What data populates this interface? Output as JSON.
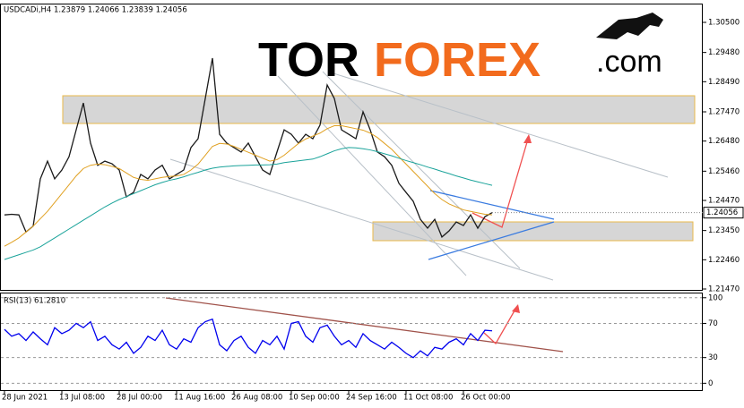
{
  "logo": {
    "part1": "TOR",
    "part2": "FOREX",
    "part3": ".com"
  },
  "chart_data": [
    {
      "type": "line",
      "title": "USDCADi,H4  1.23879 1.24066 1.23839 1.24056",
      "ylim": [
        1.2147,
        1.31106
      ],
      "yticks": [
        {
          "value": 1.305,
          "label": "1.30500"
        },
        {
          "value": 1.2948,
          "label": "1.29480"
        },
        {
          "value": 1.2849,
          "label": "1.28490"
        },
        {
          "value": 1.2747,
          "label": "1.27470"
        },
        {
          "value": 1.2648,
          "label": "1.26480"
        },
        {
          "value": 1.2546,
          "label": "1.25460"
        },
        {
          "value": 1.2447,
          "label": "1.24470"
        },
        {
          "value": 1.2345,
          "label": "1.23450"
        },
        {
          "value": 1.2246,
          "label": "1.22460"
        },
        {
          "value": 1.2147,
          "label": "1.21470"
        }
      ],
      "series": [
        {
          "color": "#1a1a1a",
          "values": [
            1.2398,
            1.24,
            1.2398,
            1.234,
            1.236,
            1.252,
            1.258,
            1.252,
            1.255,
            1.2595,
            1.2686,
            1.2777,
            1.2641,
            1.2566,
            1.258,
            1.2571,
            1.255,
            1.2459,
            1.2474,
            1.2535,
            1.252,
            1.255,
            1.2566,
            1.252,
            1.2535,
            1.255,
            1.2626,
            1.2656,
            1.2792,
            1.2929,
            1.2671,
            1.2641,
            1.2626,
            1.2611,
            1.2641,
            1.2595,
            1.255,
            1.2535,
            1.2611,
            1.2686,
            1.2671,
            1.2641,
            1.2671,
            1.2656,
            1.2702,
            1.2838,
            1.2792,
            1.2686,
            1.2671,
            1.2656,
            1.2747,
            1.2686,
            1.2611,
            1.2595,
            1.2566,
            1.2505,
            1.2474,
            1.2444,
            1.2383,
            1.2353,
            1.2383,
            1.2323,
            1.2344,
            1.2374,
            1.2362,
            1.2398,
            1.2353,
            1.2392,
            1.24056
          ]
        },
        {
          "color": "#e0a020",
          "values": [
            1.2292,
            1.2305,
            1.232,
            1.234,
            1.236,
            1.2385,
            1.241,
            1.244,
            1.247,
            1.25,
            1.253,
            1.2555,
            1.2566,
            1.257,
            1.2568,
            1.2562,
            1.2555,
            1.254,
            1.2525,
            1.2518,
            1.2515,
            1.252,
            1.2525,
            1.2528,
            1.253,
            1.2535,
            1.255,
            1.257,
            1.26,
            1.263,
            1.264,
            1.2638,
            1.263,
            1.262,
            1.261,
            1.26,
            1.259,
            1.258,
            1.2585,
            1.26,
            1.262,
            1.264,
            1.2655,
            1.2665,
            1.2675,
            1.269,
            1.27,
            1.27,
            1.2695,
            1.269,
            1.2685,
            1.2675,
            1.266,
            1.264,
            1.262,
            1.2595,
            1.257,
            1.2545,
            1.252,
            1.2495,
            1.247,
            1.245,
            1.2435,
            1.2425,
            1.2415,
            1.241,
            1.2405,
            1.24,
            1.2398
          ]
        },
        {
          "color": "#1aa39a",
          "values": [
            1.2247,
            1.2255,
            1.2263,
            1.2271,
            1.2279,
            1.229,
            1.2305,
            1.232,
            1.2335,
            1.235,
            1.2365,
            1.238,
            1.2395,
            1.241,
            1.2425,
            1.2438,
            1.245,
            1.246,
            1.247,
            1.248,
            1.249,
            1.25,
            1.2508,
            1.2515,
            1.252,
            1.2527,
            1.2535,
            1.2542,
            1.255,
            1.2556,
            1.256,
            1.2562,
            1.2564,
            1.2565,
            1.2566,
            1.2567,
            1.2567,
            1.2568,
            1.257,
            1.2575,
            1.2578,
            1.2581,
            1.2584,
            1.2587,
            1.2595,
            1.2605,
            1.2615,
            1.2622,
            1.2626,
            1.2625,
            1.2622,
            1.2618,
            1.2612,
            1.2605,
            1.2598,
            1.259,
            1.2582,
            1.2575,
            1.2568,
            1.256,
            1.2553,
            1.2545,
            1.2538,
            1.253,
            1.2523,
            1.2516,
            1.251,
            1.2504,
            1.2498
          ]
        }
      ]
    },
    {
      "type": "line",
      "title": "RSI(13) 61.2810",
      "ylim": [
        -8,
        105
      ],
      "yticks": [
        100,
        70,
        30,
        0
      ],
      "categories": [
        "28 Jun 2021",
        null,
        null,
        null,
        null,
        null,
        null,
        null,
        "13 Jul 08:00",
        null,
        null,
        null,
        null,
        null,
        null,
        null,
        "28 Jul 00:00",
        null,
        null,
        null,
        null,
        null,
        null,
        null,
        "11 Aug 16:00",
        null,
        null,
        null,
        null,
        null,
        null,
        null,
        "26 Aug 08:00",
        null,
        null,
        null,
        null,
        null,
        null,
        null,
        "10 Sep 00:00",
        null,
        null,
        null,
        null,
        null,
        null,
        null,
        "24 Sep 16:00",
        null,
        null,
        null,
        null,
        null,
        null,
        null,
        "11 Oct 08:00",
        null,
        null,
        null,
        null,
        null,
        null,
        null,
        "26 Oct 00:00",
        null,
        null,
        null,
        null
      ],
      "series": [
        {
          "color": "#0000ee",
          "values": [
            63,
            55,
            58,
            50,
            60,
            52,
            45,
            65,
            58,
            62,
            70,
            65,
            72,
            50,
            55,
            45,
            40,
            48,
            35,
            42,
            55,
            50,
            62,
            45,
            40,
            52,
            48,
            65,
            72,
            75,
            45,
            38,
            50,
            55,
            42,
            35,
            50,
            45,
            55,
            40,
            70,
            72,
            55,
            48,
            65,
            68,
            55,
            45,
            50,
            42,
            58,
            50,
            45,
            40,
            48,
            42,
            35,
            30,
            38,
            32,
            42,
            40,
            48,
            52,
            45,
            58,
            50,
            62,
            61.281
          ]
        }
      ]
    }
  ]
}
